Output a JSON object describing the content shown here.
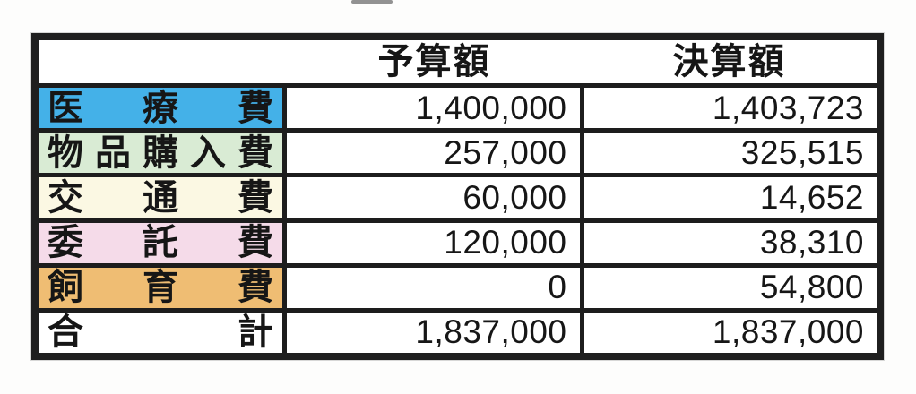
{
  "table": {
    "header": {
      "item_label": "",
      "budget_label": "予算額",
      "settlement_label": "決算額"
    },
    "style": {
      "line_color": "#1d1d1d",
      "text_color": "#161616",
      "row_colors": {
        "medical": "#44B1E8",
        "goods": "#D9EBD4",
        "transport": "#FBF8E3",
        "outsourcing": "#F5DBE9",
        "animal_care": "#EFBD73",
        "total": "#FFFFFF"
      }
    },
    "rows": [
      {
        "label": "医療費",
        "budget": "1,400,000",
        "settlement": "1,403,723",
        "label_bg": "#44B1E8"
      },
      {
        "label": "物品購入費",
        "budget": "257,000",
        "settlement": "325,515",
        "label_bg": "#D9EBD4"
      },
      {
        "label": "交通費",
        "budget": "60,000",
        "settlement": "14,652",
        "label_bg": "#FBF8E3"
      },
      {
        "label": "委託費",
        "budget": "120,000",
        "settlement": "38,310",
        "label_bg": "#F5DBE9"
      },
      {
        "label": "飼育費",
        "budget": "0",
        "settlement": "54,800",
        "label_bg": "#EFBD73"
      },
      {
        "label": "合計",
        "budget": "1,837,000",
        "settlement": "1,837,000",
        "label_bg": "#FFFFFF"
      }
    ]
  }
}
